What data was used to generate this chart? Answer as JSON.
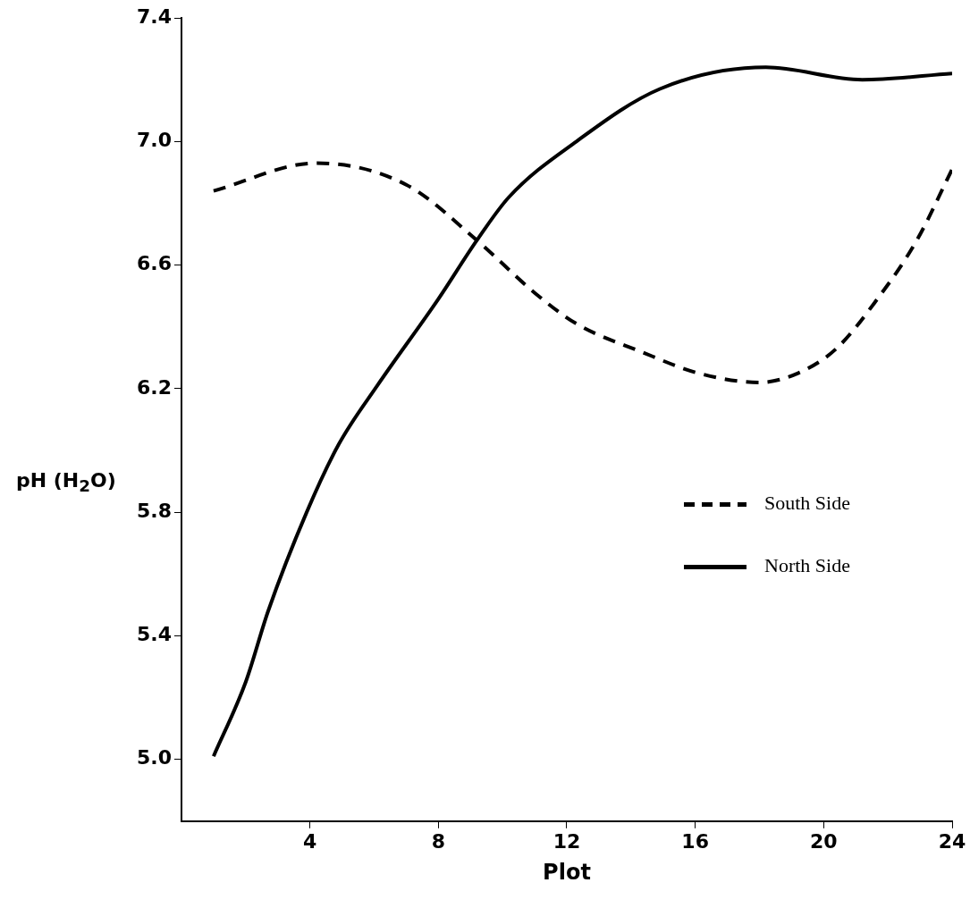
{
  "chart_data": {
    "type": "line",
    "xlabel": "Plot",
    "ylabel": "pH (H$_{2}$O)",
    "xlim": [
      0,
      24
    ],
    "xticks": [
      4,
      8,
      12,
      16,
      20,
      24
    ],
    "ylim": [
      4.8,
      7.4
    ],
    "yticks": [
      {
        "value": 5.0,
        "label": "5.0"
      },
      5.4,
      5.8,
      6.2,
      6.6,
      {
        "value": 7.0,
        "label": "7.0"
      },
      7.4
    ],
    "grid": false,
    "legend": "right",
    "marker": "none",
    "series": [
      {
        "name": "South Side",
        "color": "#000000",
        "line_style": "dashed",
        "x": [
          1,
          4.2,
          7,
          9.2,
          11,
          12.3,
          14.3,
          16.1,
          18,
          19.2,
          20.4,
          21.6,
          22.9,
          24
        ],
        "values": [
          6.84,
          6.93,
          6.86,
          6.68,
          6.51,
          6.41,
          6.32,
          6.25,
          6.22,
          6.25,
          6.33,
          6.48,
          6.68,
          6.91
        ]
      },
      {
        "name": "North Side",
        "color": "#000000",
        "line_style": "solid",
        "x": [
          1,
          2,
          2.7,
          3.9,
          4.9,
          6.1,
          8,
          9.2,
          10.2,
          12.3,
          14.9,
          18.2,
          21.2,
          24
        ],
        "values": [
          5.01,
          5.25,
          5.48,
          5.8,
          6.02,
          6.21,
          6.49,
          6.68,
          6.82,
          7.0,
          7.17,
          7.24,
          7.2,
          7.22
        ]
      }
    ]
  }
}
